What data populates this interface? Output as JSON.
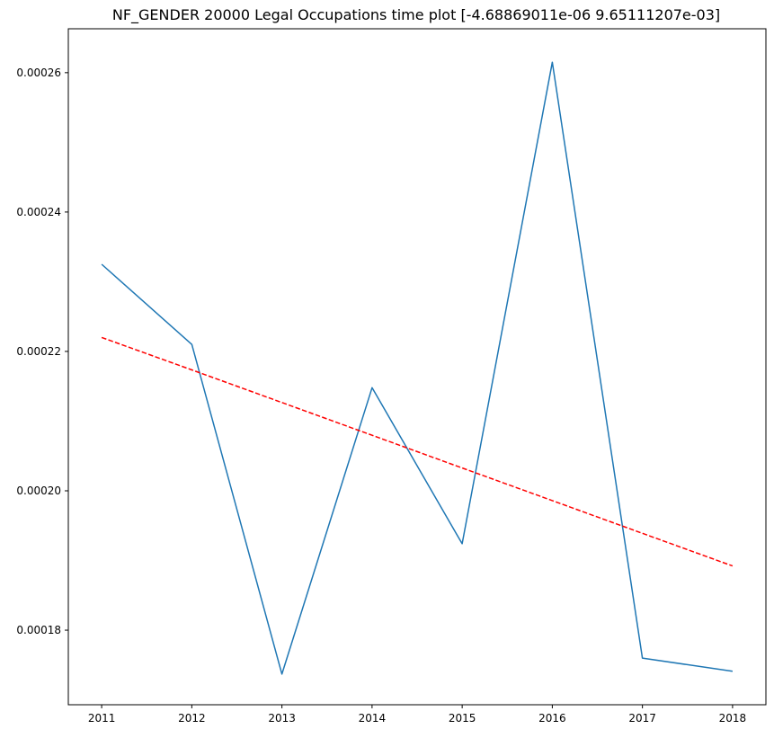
{
  "chart_data": {
    "type": "line",
    "title": "NF_GENDER 20000 Legal Occupations time plot [-4.68869011e-06  9.65111207e-03]",
    "xlabel": "",
    "ylabel": "",
    "x": [
      2011,
      2012,
      2013,
      2014,
      2015,
      2016,
      2017,
      2018
    ],
    "x_tick_labels": [
      "2011",
      "2012",
      "2013",
      "2014",
      "2015",
      "2016",
      "2017",
      "2018"
    ],
    "y_ticks": [
      0.00018,
      0.0002,
      0.00022,
      0.00024,
      0.00026
    ],
    "y_tick_labels": [
      "0.00018",
      "0.00020",
      "0.00022",
      "0.00024",
      "0.00026"
    ],
    "xlim": [
      2010.63,
      2018.37
    ],
    "ylim": [
      0.0001693,
      0.0002663
    ],
    "grid": false,
    "series": [
      {
        "values": [
          0.0002325,
          0.000221,
          0.0001737,
          0.0002148,
          0.0001924,
          0.0002615,
          0.000176,
          0.0001741
        ],
        "color": "#1f77b4",
        "style": "solid"
      },
      {
        "values": [
          0.000222,
          0.00021735,
          0.00021266,
          0.00020797,
          0.00020328,
          0.00019859,
          0.0001939,
          0.00018922
        ],
        "color": "#ff0000",
        "style": "dashed"
      }
    ]
  }
}
